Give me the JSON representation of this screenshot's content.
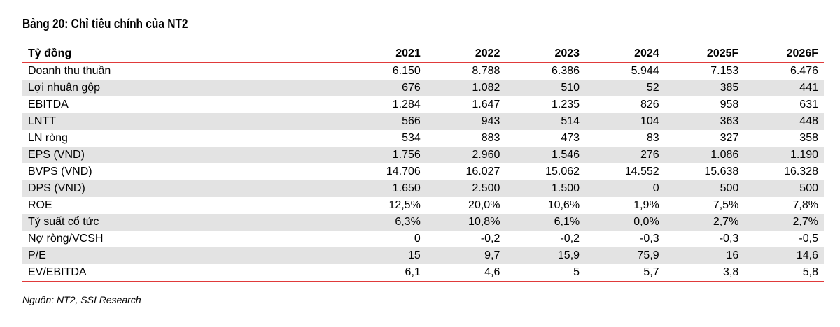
{
  "title": "Bảng 20: Chỉ tiêu chính của NT2",
  "table": {
    "header": [
      "Tỷ đồng",
      "2021",
      "2022",
      "2023",
      "2024",
      "2025F",
      "2026F"
    ],
    "rows": [
      [
        "Doanh thu thuần",
        "6.150",
        "8.788",
        "6.386",
        "5.944",
        "7.153",
        "6.476"
      ],
      [
        "Lợi nhuận gộp",
        "676",
        "1.082",
        "510",
        "52",
        "385",
        "441"
      ],
      [
        "EBITDA",
        "1.284",
        "1.647",
        "1.235",
        "826",
        "958",
        "631"
      ],
      [
        "LNTT",
        "566",
        "943",
        "514",
        "104",
        "363",
        "448"
      ],
      [
        "LN ròng",
        "534",
        "883",
        "473",
        "83",
        "327",
        "358"
      ],
      [
        "EPS (VND)",
        "1.756",
        "2.960",
        "1.546",
        "276",
        "1.086",
        "1.190"
      ],
      [
        "BVPS (VND)",
        "14.706",
        "16.027",
        "15.062",
        "14.552",
        "15.638",
        "16.328"
      ],
      [
        "DPS (VND)",
        "1.650",
        "2.500",
        "1.500",
        "0",
        "500",
        "500"
      ],
      [
        "ROE",
        "12,5%",
        "20,0%",
        "10,6%",
        "1,9%",
        "7,5%",
        "7,8%"
      ],
      [
        "Tỷ suất cổ tức",
        "6,3%",
        "10,8%",
        "6,1%",
        "0,0%",
        "2,7%",
        "2,7%"
      ],
      [
        "Nợ ròng/VCSH",
        "0",
        "-0,2",
        "-0,2",
        "-0,3",
        "-0,3",
        "-0,5"
      ],
      [
        "P/E",
        "15",
        "9,7",
        "15,9",
        "75,9",
        "16",
        "14,6"
      ],
      [
        "EV/EBITDA",
        "6,1",
        "4,6",
        "5",
        "5,7",
        "3,8",
        "5,8"
      ]
    ]
  },
  "source": "Nguồn: NT2, SSI Research",
  "colors": {
    "rule": "#e03a3a",
    "stripe": "#e3e3e3"
  }
}
